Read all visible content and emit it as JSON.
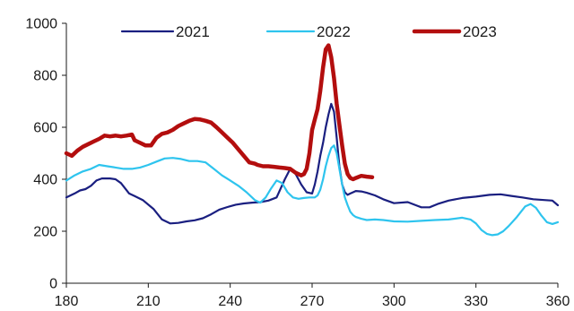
{
  "chart_data": {
    "type": "line",
    "title": "",
    "xlabel": "",
    "ylabel": "",
    "xlim": [
      180,
      360
    ],
    "ylim": [
      0,
      1000
    ],
    "x_ticks": [
      180,
      210,
      240,
      270,
      300,
      330,
      360
    ],
    "y_ticks": [
      0,
      200,
      400,
      600,
      800,
      1000
    ],
    "grid": false,
    "legend_position": "top",
    "series": [
      {
        "name": "2021",
        "color": "#1a1f80",
        "x": [
          180,
          183,
          185,
          187,
          189,
          191,
          193,
          196,
          198,
          200,
          203,
          205,
          208,
          212,
          215,
          218,
          221,
          224,
          227,
          230,
          233,
          236,
          239,
          242,
          245,
          248,
          251,
          254,
          257,
          260,
          262,
          264,
          266,
          268,
          270,
          271,
          272,
          273,
          274,
          275,
          276,
          277,
          278,
          279,
          280,
          281,
          282,
          283,
          284,
          285,
          286,
          288,
          290,
          293,
          296,
          300,
          305,
          308,
          310,
          313,
          316,
          320,
          325,
          330,
          335,
          339,
          343,
          347,
          351,
          355,
          358,
          360
        ],
        "values": [
          330,
          345,
          357,
          362,
          375,
          395,
          403,
          403,
          400,
          385,
          345,
          335,
          320,
          285,
          245,
          230,
          232,
          238,
          242,
          250,
          265,
          283,
          293,
          302,
          307,
          310,
          312,
          318,
          330,
          400,
          440,
          420,
          380,
          350,
          345,
          380,
          430,
          490,
          540,
          600,
          650,
          690,
          660,
          560,
          450,
          380,
          350,
          340,
          345,
          350,
          355,
          353,
          348,
          338,
          323,
          308,
          312,
          300,
          292,
          292,
          305,
          318,
          328,
          333,
          340,
          342,
          336,
          330,
          323,
          320,
          318,
          300
        ]
      },
      {
        "name": "2022",
        "color": "#2ec4ee",
        "x": [
          180,
          183,
          186,
          189,
          192,
          195,
          198,
          201,
          204,
          207,
          210,
          213,
          216,
          219,
          222,
          225,
          228,
          231,
          234,
          237,
          240,
          243,
          246,
          249,
          251,
          253,
          255,
          257,
          259,
          261,
          263,
          265,
          267,
          269,
          271,
          272,
          273,
          274,
          275,
          276,
          277,
          278,
          279,
          280,
          281,
          282,
          283,
          284,
          285,
          286,
          288,
          290,
          293,
          296,
          300,
          305,
          310,
          315,
          320,
          325,
          328,
          330,
          332,
          334,
          336,
          338,
          340,
          342,
          345,
          348,
          350,
          352,
          354,
          356,
          358,
          360
        ],
        "values": [
          395,
          415,
          430,
          440,
          455,
          450,
          445,
          440,
          440,
          445,
          455,
          468,
          480,
          482,
          478,
          470,
          470,
          465,
          440,
          415,
          395,
          375,
          350,
          320,
          310,
          330,
          365,
          395,
          385,
          350,
          330,
          325,
          328,
          330,
          330,
          338,
          360,
          400,
          450,
          490,
          520,
          530,
          500,
          440,
          380,
          330,
          300,
          275,
          262,
          255,
          248,
          243,
          245,
          243,
          238,
          237,
          240,
          243,
          245,
          252,
          245,
          230,
          205,
          190,
          185,
          188,
          200,
          220,
          255,
          295,
          305,
          290,
          260,
          235,
          228,
          235
        ]
      },
      {
        "name": "2023",
        "color": "#b30e0e",
        "x": [
          180,
          182,
          184,
          186,
          188,
          190,
          192,
          194,
          196,
          198,
          200,
          202,
          204,
          205,
          207,
          209,
          211,
          213,
          215,
          217,
          219,
          221,
          223,
          225,
          227,
          229,
          231,
          233,
          235,
          237,
          239,
          241,
          243,
          245,
          247,
          249,
          250,
          252,
          254,
          256,
          258,
          260,
          262,
          264,
          266,
          267,
          268,
          269,
          270,
          271,
          272,
          273,
          274,
          275,
          276,
          277,
          278,
          279,
          280,
          281,
          282,
          283,
          284,
          285,
          286,
          288,
          290,
          292
        ],
        "values": [
          500,
          490,
          510,
          525,
          535,
          545,
          555,
          568,
          565,
          568,
          565,
          568,
          572,
          550,
          540,
          530,
          530,
          560,
          575,
          580,
          590,
          605,
          615,
          625,
          632,
          630,
          625,
          618,
          600,
          580,
          560,
          540,
          515,
          490,
          465,
          460,
          455,
          450,
          450,
          448,
          445,
          443,
          440,
          425,
          415,
          420,
          440,
          500,
          590,
          630,
          670,
          740,
          830,
          900,
          915,
          870,
          790,
          690,
          610,
          530,
          460,
          420,
          405,
          400,
          405,
          413,
          410,
          408
        ]
      }
    ]
  }
}
